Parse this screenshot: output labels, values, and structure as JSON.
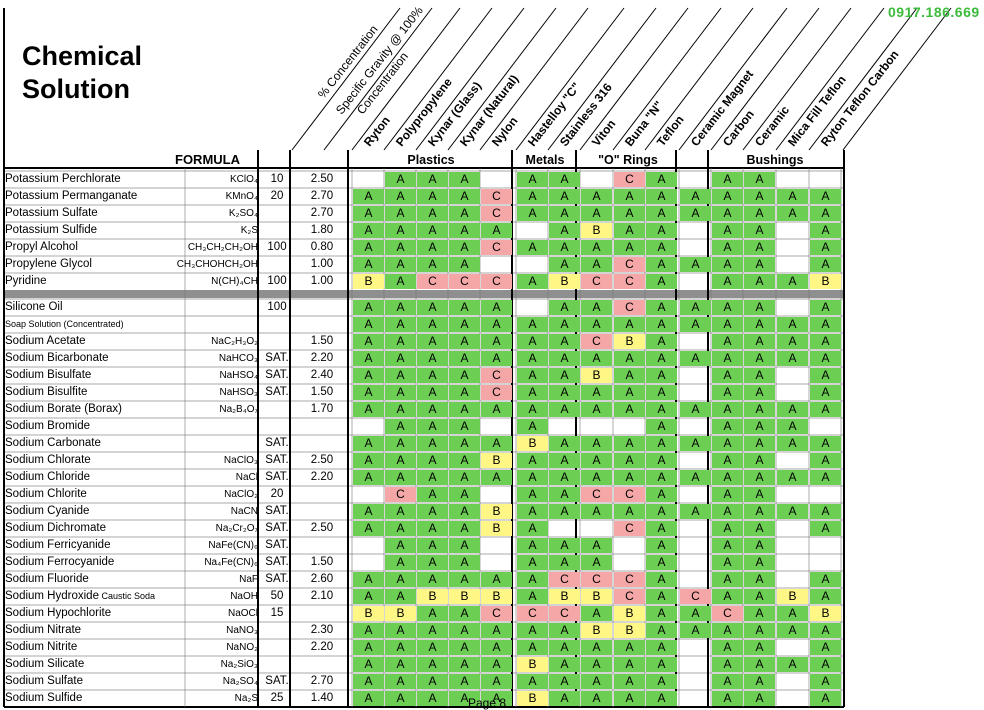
{
  "title_line1": "Chemical",
  "title_line2": "Solution",
  "formula_header": "FORMULA",
  "phone": "0917.186.669",
  "page_label": "Page 8",
  "diag_headers": {
    "concentration": "% Concentration",
    "sg1": "Specific Gravity @ 100%",
    "sg2": "Concentration"
  },
  "materials": [
    "Ryton",
    "Polypropylene",
    "Kynar (Glass)",
    "Kynar (Natural)",
    "Nylon",
    "Hastelloy \"C\"",
    "Stainless 316",
    "Viton",
    "Buna \"N\"",
    "Teflon",
    "Ceramic Magnet",
    "Carbon",
    "Ceramic",
    "Mica Fill Teflon",
    "Ryton Teflon Carbon"
  ],
  "groups": [
    "Plastics",
    "Metals",
    "\"O\" Rings",
    "Bushings"
  ],
  "colors": {
    "A": "#6ccf53",
    "B": "#fff785",
    "C": "#f5a7a7"
  },
  "rows": [
    {
      "name": "Potassium Perchlorate",
      "formula": "KClO₄",
      "conc": "10",
      "sg": "2.50",
      "r": [
        "",
        "A",
        "A",
        "A",
        "",
        "A",
        "A",
        "",
        "C",
        "A",
        "",
        "A",
        "A",
        "",
        ""
      ]
    },
    {
      "name": "Potassium Permanganate",
      "formula": "KMnO₄",
      "conc": "20",
      "sg": "2.70",
      "r": [
        "A",
        "A",
        "A",
        "A",
        "C",
        "A",
        "A",
        "A",
        "A",
        "A",
        "A",
        "A",
        "A",
        "A",
        "A"
      ]
    },
    {
      "name": "Potassium Sulfate",
      "formula": "K₂SO₄",
      "conc": "",
      "sg": "2.70",
      "r": [
        "A",
        "A",
        "A",
        "A",
        "C",
        "A",
        "A",
        "A",
        "A",
        "A",
        "A",
        "A",
        "A",
        "A",
        "A"
      ]
    },
    {
      "name": "Potassium Sulfide",
      "formula": "K₂S",
      "conc": "",
      "sg": "1.80",
      "r": [
        "A",
        "A",
        "A",
        "A",
        "A",
        "",
        "A",
        "B",
        "A",
        "A",
        "",
        "A",
        "A",
        "",
        "A"
      ]
    },
    {
      "name": "Propyl Alcohol",
      "formula": "CH₃CH₂CH₂OH",
      "conc": "100",
      "sg": "0.80",
      "r": [
        "A",
        "A",
        "A",
        "A",
        "C",
        "A",
        "A",
        "A",
        "A",
        "A",
        "",
        "A",
        "A",
        "",
        "A"
      ]
    },
    {
      "name": "Propylene Glycol",
      "formula": "CH₃CHOHCH₂OH",
      "conc": "",
      "sg": "1.00",
      "r": [
        "A",
        "A",
        "A",
        "A",
        "",
        "",
        "A",
        "A",
        "C",
        "A",
        "A",
        "A",
        "A",
        "",
        "A"
      ]
    },
    {
      "name": "Pyridine",
      "formula": "N(CH)₄CH",
      "conc": "100",
      "sg": "1.00",
      "r": [
        "B",
        "A",
        "C",
        "C",
        "C",
        "A",
        "B",
        "C",
        "C",
        "A",
        "",
        "A",
        "A",
        "A",
        "B"
      ]
    },
    {
      "name": "Silicone Oil",
      "formula": "",
      "conc": "100",
      "sg": "",
      "r": [
        "A",
        "A",
        "A",
        "A",
        "A",
        "",
        "A",
        "A",
        "C",
        "A",
        "A",
        "A",
        "A",
        "",
        "A"
      ]
    },
    {
      "name": "Soap Solution (Concentrated)",
      "small": true,
      "formula": "",
      "conc": "",
      "sg": "",
      "r": [
        "A",
        "A",
        "A",
        "A",
        "A",
        "A",
        "A",
        "A",
        "A",
        "A",
        "A",
        "A",
        "A",
        "A",
        "A"
      ]
    },
    {
      "name": "Sodium Acetate",
      "formula": "NaC₂H₃O₂",
      "conc": "",
      "sg": "1.50",
      "r": [
        "A",
        "A",
        "A",
        "A",
        "A",
        "A",
        "A",
        "C",
        "B",
        "A",
        "",
        "A",
        "A",
        "A",
        "A"
      ]
    },
    {
      "name": "Sodium Bicarbonate",
      "formula": "NaHCO₃",
      "conc": "SAT.",
      "sg": "2.20",
      "r": [
        "A",
        "A",
        "A",
        "A",
        "A",
        "A",
        "A",
        "A",
        "A",
        "A",
        "A",
        "A",
        "A",
        "A",
        "A"
      ]
    },
    {
      "name": "Sodium Bisulfate",
      "formula": "NaHSO₄",
      "conc": "SAT.",
      "sg": "2.40",
      "r": [
        "A",
        "A",
        "A",
        "A",
        "C",
        "A",
        "A",
        "B",
        "A",
        "A",
        "",
        "A",
        "A",
        "",
        "A"
      ]
    },
    {
      "name": "Sodium Bisulfite",
      "formula": "NaHSO₃",
      "conc": "SAT.",
      "sg": "1.50",
      "r": [
        "A",
        "A",
        "A",
        "A",
        "C",
        "A",
        "A",
        "A",
        "A",
        "A",
        "",
        "A",
        "A",
        "",
        "A"
      ]
    },
    {
      "name": "Sodium Borate (Borax)",
      "formula": "Na₂B₄O₇",
      "conc": "",
      "sg": "1.70",
      "r": [
        "A",
        "A",
        "A",
        "A",
        "A",
        "A",
        "A",
        "A",
        "A",
        "A",
        "A",
        "A",
        "A",
        "A",
        "A"
      ]
    },
    {
      "name": "Sodium Bromide",
      "formula": "",
      "conc": "",
      "sg": "",
      "r": [
        "",
        "A",
        "A",
        "A",
        "",
        "A",
        "",
        "",
        "",
        "A",
        "",
        "A",
        "A",
        "A",
        ""
      ]
    },
    {
      "name": "Sodium Carbonate",
      "formula": "",
      "conc": "SAT.",
      "sg": "",
      "r": [
        "A",
        "A",
        "A",
        "A",
        "A",
        "B",
        "A",
        "A",
        "A",
        "A",
        "A",
        "A",
        "A",
        "A",
        "A"
      ]
    },
    {
      "name": "Sodium Chlorate",
      "formula": "NaClO₃",
      "conc": "SAT.",
      "sg": "2.50",
      "r": [
        "A",
        "A",
        "A",
        "A",
        "B",
        "A",
        "A",
        "A",
        "A",
        "A",
        "",
        "A",
        "A",
        "",
        "A"
      ]
    },
    {
      "name": "Sodium Chloride",
      "formula": "NaCl",
      "conc": "SAT.",
      "sg": "2.20",
      "r": [
        "A",
        "A",
        "A",
        "A",
        "A",
        "A",
        "A",
        "A",
        "A",
        "A",
        "A",
        "A",
        "A",
        "A",
        "A"
      ]
    },
    {
      "name": "Sodium Chlorite",
      "formula": "NaClO₂",
      "conc": "20",
      "sg": "",
      "r": [
        "",
        "C",
        "A",
        "A",
        "",
        "A",
        "A",
        "C",
        "C",
        "A",
        "",
        "A",
        "A",
        "",
        ""
      ]
    },
    {
      "name": "Sodium Cyanide",
      "formula": "NaCN",
      "conc": "SAT.",
      "sg": "",
      "r": [
        "A",
        "A",
        "A",
        "A",
        "B",
        "A",
        "A",
        "A",
        "A",
        "A",
        "A",
        "A",
        "A",
        "A",
        "A"
      ]
    },
    {
      "name": "Sodium Dichromate",
      "formula": "Na₂Cr₂O₇",
      "conc": "SAT.",
      "sg": "2.50",
      "r": [
        "A",
        "A",
        "A",
        "A",
        "B",
        "A",
        "",
        "",
        "C",
        "A",
        "",
        "A",
        "A",
        "",
        "A"
      ]
    },
    {
      "name": "Sodium Ferricyanide",
      "formula": "NaFe(CN)₆",
      "conc": "SAT.",
      "sg": "",
      "r": [
        "",
        "A",
        "A",
        "A",
        "",
        "A",
        "A",
        "A",
        "",
        "A",
        "",
        "A",
        "A",
        "",
        ""
      ]
    },
    {
      "name": "Sodium Ferrocyanide",
      "formula": "Na₄Fe(CN)₆",
      "conc": "SAT.",
      "sg": "1.50",
      "r": [
        "",
        "A",
        "A",
        "A",
        "",
        "A",
        "A",
        "A",
        "",
        "A",
        "",
        "A",
        "A",
        "",
        ""
      ]
    },
    {
      "name": "Sodium Fluoride",
      "formula": "NaF",
      "conc": "SAT.",
      "sg": "2.60",
      "r": [
        "A",
        "A",
        "A",
        "A",
        "A",
        "A",
        "C",
        "C",
        "C",
        "A",
        "",
        "A",
        "A",
        "",
        "A"
      ]
    },
    {
      "name": "Sodium Hydroxide",
      "suffix": "Caustic Soda",
      "formula": "NaOH",
      "conc": "50",
      "sg": "2.10",
      "r": [
        "A",
        "A",
        "B",
        "B",
        "B",
        "A",
        "B",
        "B",
        "C",
        "A",
        "C",
        "A",
        "A",
        "B",
        "A"
      ]
    },
    {
      "name": "Sodium Hypochlorite",
      "formula": "NaOCl",
      "conc": "15",
      "sg": "",
      "r": [
        "B",
        "B",
        "A",
        "A",
        "C",
        "C",
        "C",
        "A",
        "B",
        "A",
        "A",
        "C",
        "A",
        "A",
        "B"
      ]
    },
    {
      "name": "Sodium Nitrate",
      "formula": "NaNO₃",
      "conc": "",
      "sg": "2.30",
      "r": [
        "A",
        "A",
        "A",
        "A",
        "A",
        "A",
        "A",
        "B",
        "B",
        "A",
        "A",
        "A",
        "A",
        "A",
        "A"
      ]
    },
    {
      "name": "Sodium Nitrite",
      "formula": "NaNO₂",
      "conc": "",
      "sg": "2.20",
      "r": [
        "A",
        "A",
        "A",
        "A",
        "A",
        "A",
        "A",
        "A",
        "A",
        "A",
        "",
        "A",
        "A",
        "",
        "A"
      ]
    },
    {
      "name": "Sodium Silicate",
      "formula": "Na₂SiO₃",
      "conc": "",
      "sg": "",
      "r": [
        "A",
        "A",
        "A",
        "A",
        "A",
        "B",
        "A",
        "A",
        "A",
        "A",
        "",
        "A",
        "A",
        "A",
        "A"
      ]
    },
    {
      "name": "Sodium Sulfate",
      "formula": "Na₂SO₄",
      "conc": "SAT.",
      "sg": "2.70",
      "r": [
        "A",
        "A",
        "A",
        "A",
        "A",
        "A",
        "A",
        "A",
        "A",
        "A",
        "",
        "A",
        "A",
        "",
        "A"
      ]
    },
    {
      "name": "Sodium Sulfide",
      "formula": "Na₂S",
      "conc": "25",
      "sg": "1.40",
      "r": [
        "A",
        "A",
        "A",
        "A",
        "A",
        "B",
        "A",
        "A",
        "A",
        "A",
        "",
        "A",
        "A",
        "",
        "A"
      ]
    }
  ]
}
